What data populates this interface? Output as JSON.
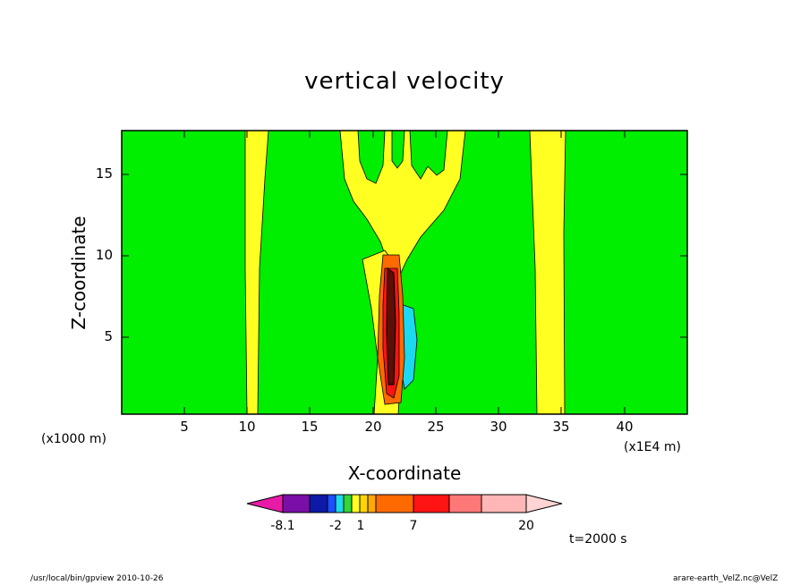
{
  "chart_data": {
    "type": "heatmap",
    "title": "vertical velocity",
    "xlabel": "X-coordinate",
    "ylabel": "Z-coordinate",
    "x_unit_left": "(x1000 m)",
    "x_unit_right": "(x1E4 m)",
    "xlim": [
      0,
      45
    ],
    "ylim": [
      0,
      17.5
    ],
    "x_ticks": [
      "5",
      "10",
      "15",
      "20",
      "25",
      "30",
      "35",
      "40"
    ],
    "y_ticks": [
      "5",
      "10",
      "15"
    ],
    "background_level_color": "#00ee00",
    "colorbar": {
      "colors": [
        "#e81aa8",
        "#7a0fa8",
        "#0d1aa8",
        "#1a50ff",
        "#1ad9f0",
        "#33d633",
        "#ffff22",
        "#ffd600",
        "#ffaa00",
        "#ff6a00",
        "#ff1414",
        "#ff7878",
        "#ffb6b6",
        "#ffd4d4"
      ],
      "labels": [
        "-8.1",
        "-2",
        "1",
        "7",
        "20"
      ]
    },
    "time_label": "t=2000 s",
    "footer_left": "/usr/local/bin/gpview  2010-10-26",
    "footer_right": "arare-earth_VelZ.nc@VelZ"
  }
}
